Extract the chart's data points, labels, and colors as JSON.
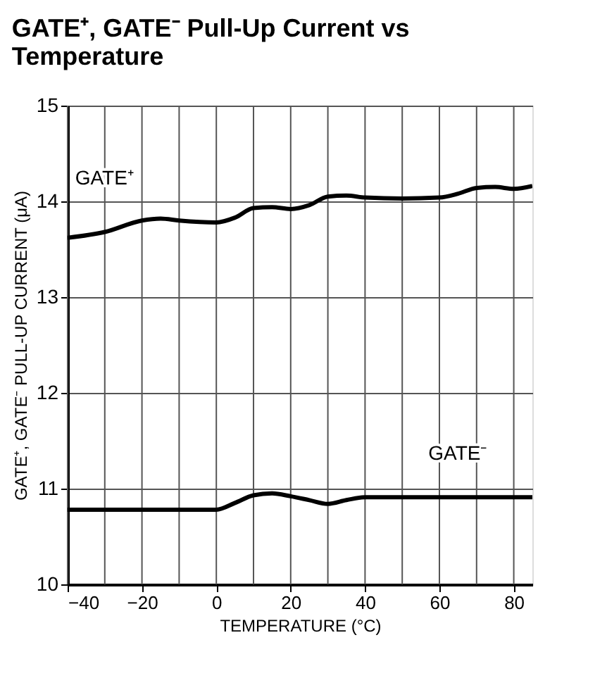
{
  "chart_data": {
    "type": "line",
    "title": "GATE⁺, GATE⁻ Pull-Up Current vs Temperature",
    "xlabel": "TEMPERATURE (°C)",
    "ylabel": "GATE⁺, GATE⁻ PULL-UP CURRENT (μA)",
    "x": [
      -40,
      -30,
      -20,
      -15,
      -10,
      0,
      5,
      10,
      15,
      20,
      25,
      30,
      35,
      40,
      50,
      60,
      65,
      70,
      75,
      80,
      85
    ],
    "series": [
      {
        "color": "#000000",
        "values": [
          13.62,
          13.68,
          13.8,
          13.82,
          13.8,
          13.78,
          13.83,
          13.93,
          13.94,
          13.92,
          13.96,
          14.05,
          14.06,
          14.04,
          14.03,
          14.04,
          14.08,
          14.14,
          14.15,
          14.13,
          14.16
        ]
      },
      {
        "color": "#000000",
        "values": [
          10.78,
          10.78,
          10.78,
          10.78,
          10.78,
          10.78,
          10.85,
          10.93,
          10.95,
          10.92,
          10.88,
          10.84,
          10.88,
          10.91,
          10.91,
          10.91,
          10.91,
          10.91,
          10.91,
          10.91,
          10.91
        ]
      }
    ],
    "annotations": [
      "GATE⁺",
      "GATE⁻"
    ],
    "xlim": [
      -40,
      85
    ],
    "ylim": [
      10,
      15
    ],
    "xticks": [
      -40,
      {
        "value": -30,
        "label": null
      },
      -20,
      {
        "value": -10,
        "label": null
      },
      0,
      {
        "value": 10,
        "label": null
      },
      20,
      {
        "value": 30,
        "label": null
      },
      40,
      {
        "value": 50,
        "label": null
      },
      60,
      {
        "value": 70,
        "label": null
      },
      80
    ],
    "yticks": [
      10,
      11,
      12,
      13,
      14,
      15
    ],
    "grid": true,
    "legend": false,
    "line_style": "solid",
    "marker": "none"
  }
}
